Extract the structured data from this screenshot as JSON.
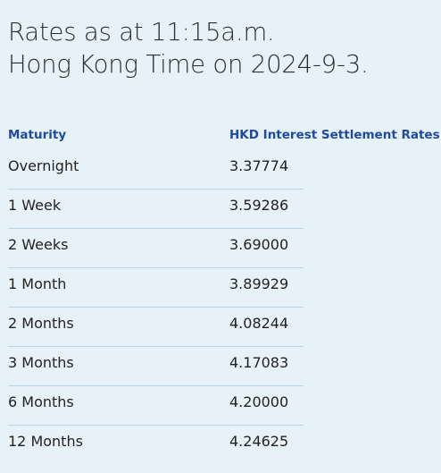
{
  "title": {
    "line1": "Rates as at 11:15a.m.",
    "line2": "Hong Kong Time on 2024-9-3."
  },
  "table": {
    "headers": {
      "maturity": "Maturity",
      "rate": "HKD Interest Settlement Rates"
    },
    "rows": [
      {
        "maturity": "Overnight",
        "rate": "3.37774"
      },
      {
        "maturity": "1 Week",
        "rate": "3.59286"
      },
      {
        "maturity": "2 Weeks",
        "rate": "3.69000"
      },
      {
        "maturity": "1 Month",
        "rate": "3.89929"
      },
      {
        "maturity": "2 Months",
        "rate": "4.08244"
      },
      {
        "maturity": "3 Months",
        "rate": "4.17083"
      },
      {
        "maturity": "6 Months",
        "rate": "4.20000"
      },
      {
        "maturity": "12 Months",
        "rate": "4.24625"
      }
    ]
  },
  "colors": {
    "background": "#e7f1f8",
    "header_text": "#1f4aa0",
    "row_divider": "#b9d2e6"
  }
}
